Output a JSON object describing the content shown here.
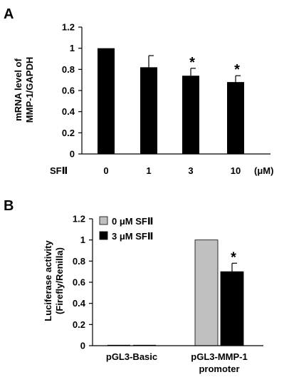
{
  "chart_data": [
    {
      "panel": "A",
      "type": "bar",
      "title": "",
      "ylabel_lines": [
        "mRNA level of",
        "MMP-1/GAPDH"
      ],
      "xlabel_prefix": "SFⅡ",
      "x_unit": "(μM)",
      "categories": [
        "0",
        "1",
        "3",
        "10"
      ],
      "values": [
        1.0,
        0.82,
        0.74,
        0.68
      ],
      "errors": [
        0.0,
        0.11,
        0.07,
        0.06
      ],
      "significance": [
        "",
        "",
        "*",
        "*"
      ],
      "ylim": [
        0,
        1.2
      ],
      "yticks": [
        "0",
        "0.2",
        "0.4",
        "0.6",
        "0.8",
        "1",
        "1.2"
      ],
      "colors": {
        "bar": "#000000"
      },
      "grid": false
    },
    {
      "panel": "B",
      "type": "bar",
      "title": "",
      "ylabel_lines": [
        "Luciferase activity",
        "(Firefly/Renilla)"
      ],
      "categories": [
        [
          "pGL3-Basic"
        ],
        [
          "pGL3-MMP-1",
          "promoter"
        ]
      ],
      "series": [
        {
          "name": "0 μM SFⅡ",
          "color": "#c0c0c0",
          "values": [
            0.0,
            1.0
          ],
          "errors": [
            0.0,
            0.0
          ],
          "significance": [
            "",
            ""
          ]
        },
        {
          "name": "3 μM SFⅡ",
          "color": "#000000",
          "values": [
            0.0,
            0.7
          ],
          "errors": [
            0.0,
            0.08
          ],
          "significance": [
            "",
            "*"
          ]
        }
      ],
      "ylim": [
        0,
        1.2
      ],
      "yticks": [
        "0",
        "0.2",
        "0.4",
        "0.6",
        "0.8",
        "1",
        "1.2"
      ],
      "legend_position": "top-left",
      "grid": false
    }
  ]
}
